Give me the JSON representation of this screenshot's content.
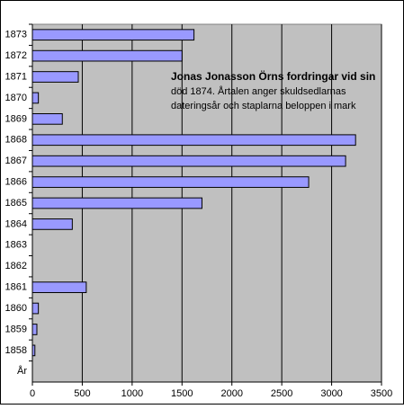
{
  "chart_data": {
    "type": "hbar",
    "annotation": [
      "Jonas Jonasson Örns fordringar vid sin",
      "död 1874. Årtalen anger skuldsedlarnas",
      "dateringsår och staplarna beloppen i mark"
    ],
    "categories": [
      "1873",
      "1872",
      "1871",
      "1870",
      "1869",
      "1868",
      "1867",
      "1866",
      "1865",
      "1864",
      "1863",
      "1862",
      "1861",
      "1860",
      "1859",
      "1858",
      "År"
    ],
    "values": [
      1620,
      1500,
      460,
      60,
      300,
      3240,
      3140,
      2770,
      1700,
      400,
      null,
      null,
      540,
      60,
      45,
      25,
      null
    ],
    "color": "#9999ff",
    "xlim": [
      0,
      3500
    ],
    "xticks": [
      0,
      500,
      1000,
      1500,
      2000,
      2500,
      3000,
      3500
    ],
    "grid": true
  }
}
